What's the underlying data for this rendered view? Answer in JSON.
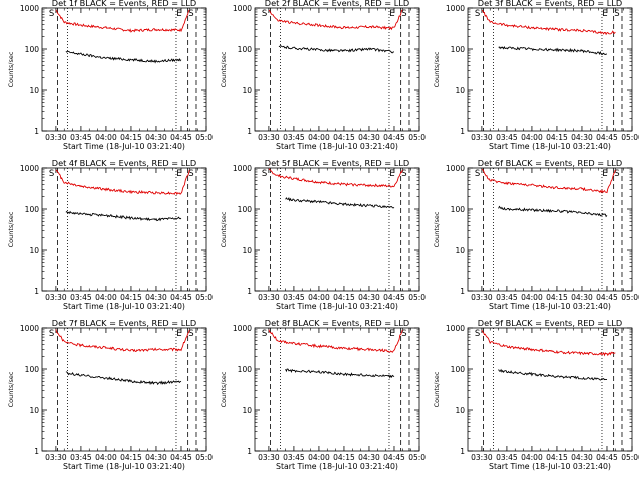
{
  "figure": {
    "ylabel": "Counts/sec",
    "xlabel": "Start Time (18-Jul-10 03:21:40)",
    "legend_colors": {
      "events": "#000000",
      "lld": "#e00000"
    }
  },
  "chart_data": [
    {
      "type": "line",
      "title": "Det 1f BLACK = Events, RED = LLD",
      "xlabel": "Start Time (18-Jul-10 03:21:40)",
      "ylabel": "Counts/sec",
      "yscale": "log",
      "ylim": [
        1,
        1000
      ],
      "xlim": [
        "03:21:40",
        "05:00:00"
      ],
      "x_ticks": [
        "03:30",
        "03:45",
        "04:00",
        "04:15",
        "04:30",
        "04:45",
        "05:00"
      ],
      "y_ticks": [
        "1",
        "10",
        "100",
        "1000"
      ],
      "markers": [
        "S",
        "E",
        "S"
      ],
      "series": [
        {
          "name": "LLD",
          "color": "#e00000",
          "x": [
            "03:30",
            "03:35",
            "03:45",
            "04:00",
            "04:15",
            "04:30",
            "04:45",
            "04:50"
          ],
          "values": [
            900,
            450,
            380,
            330,
            280,
            300,
            290,
            900
          ]
        },
        {
          "name": "Events",
          "color": "#000000",
          "x": [
            "03:36",
            "03:45",
            "04:00",
            "04:15",
            "04:30",
            "04:45"
          ],
          "values": [
            85,
            75,
            60,
            55,
            50,
            55
          ]
        }
      ]
    },
    {
      "type": "line",
      "title": "Det 2f BLACK = Events, RED = LLD",
      "xlabel": "Start Time (18-Jul-10 03:21:40)",
      "ylabel": "Counts/sec",
      "yscale": "log",
      "ylim": [
        1,
        1000
      ],
      "xlim": [
        "03:21:40",
        "05:00:00"
      ],
      "x_ticks": [
        "03:30",
        "03:45",
        "04:00",
        "04:15",
        "04:30",
        "04:45",
        "05:00"
      ],
      "y_ticks": [
        "1",
        "10",
        "100",
        "1000"
      ],
      "markers": [
        "S",
        "E",
        "S"
      ],
      "series": [
        {
          "name": "LLD",
          "color": "#e00000",
          "x": [
            "03:30",
            "03:35",
            "03:45",
            "04:00",
            "04:15",
            "04:30",
            "04:45",
            "04:50"
          ],
          "values": [
            900,
            500,
            430,
            380,
            330,
            350,
            320,
            900
          ]
        },
        {
          "name": "Events",
          "color": "#000000",
          "x": [
            "03:36",
            "03:45",
            "04:00",
            "04:15",
            "04:30",
            "04:45"
          ],
          "values": [
            115,
            105,
            95,
            90,
            100,
            85
          ]
        }
      ]
    },
    {
      "type": "line",
      "title": "Det 3f BLACK = Events, RED = LLD",
      "xlabel": "Start Time (18-Jul-10 03:21:40)",
      "ylabel": "Counts/sec",
      "yscale": "log",
      "ylim": [
        1,
        1000
      ],
      "xlim": [
        "03:21:40",
        "05:00:00"
      ],
      "x_ticks": [
        "03:30",
        "03:45",
        "04:00",
        "04:15",
        "04:30",
        "04:45",
        "05:00"
      ],
      "y_ticks": [
        "1",
        "10",
        "100",
        "1000"
      ],
      "markers": [
        "S",
        "E",
        "S"
      ],
      "series": [
        {
          "name": "LLD",
          "color": "#e00000",
          "x": [
            "03:30",
            "03:35",
            "03:45",
            "04:00",
            "04:15",
            "04:30",
            "04:45",
            "04:50"
          ],
          "values": [
            900,
            450,
            380,
            330,
            300,
            280,
            240,
            260
          ]
        },
        {
          "name": "Events",
          "color": "#000000",
          "x": [
            "03:40",
            "03:45",
            "04:00",
            "04:15",
            "04:30",
            "04:45"
          ],
          "values": [
            110,
            105,
            100,
            95,
            90,
            75
          ]
        }
      ]
    },
    {
      "type": "line",
      "title": "Det 4f BLACK = Events, RED = LLD",
      "xlabel": "Start Time (18-Jul-10 03:21:40)",
      "ylabel": "Counts/sec",
      "yscale": "log",
      "ylim": [
        1,
        1000
      ],
      "xlim": [
        "03:21:40",
        "05:00:00"
      ],
      "x_ticks": [
        "03:30",
        "03:45",
        "04:00",
        "04:15",
        "04:30",
        "04:45",
        "05:00"
      ],
      "y_ticks": [
        "1",
        "10",
        "100",
        "1000"
      ],
      "markers": [
        "S",
        "E",
        "S"
      ],
      "series": [
        {
          "name": "LLD",
          "color": "#e00000",
          "x": [
            "03:30",
            "03:35",
            "03:45",
            "04:00",
            "04:15",
            "04:30",
            "04:45",
            "04:50"
          ],
          "values": [
            900,
            450,
            360,
            300,
            260,
            250,
            240,
            900
          ]
        },
        {
          "name": "Events",
          "color": "#000000",
          "x": [
            "03:36",
            "03:45",
            "04:00",
            "04:15",
            "04:30",
            "04:45"
          ],
          "values": [
            85,
            75,
            70,
            60,
            55,
            60
          ]
        }
      ]
    },
    {
      "type": "line",
      "title": "Det 5f BLACK = Events, RED = LLD",
      "xlabel": "Start Time (18-Jul-10 03:21:40)",
      "ylabel": "Counts/sec",
      "yscale": "log",
      "ylim": [
        1,
        1000
      ],
      "xlim": [
        "03:21:40",
        "05:00:00"
      ],
      "x_ticks": [
        "03:30",
        "03:45",
        "04:00",
        "04:15",
        "04:30",
        "04:45",
        "05:00"
      ],
      "y_ticks": [
        "1",
        "10",
        "100",
        "1000"
      ],
      "markers": [
        "S",
        "E",
        "S"
      ],
      "series": [
        {
          "name": "LLD",
          "color": "#e00000",
          "x": [
            "03:30",
            "03:35",
            "03:45",
            "04:00",
            "04:15",
            "04:30",
            "04:45",
            "04:50"
          ],
          "values": [
            900,
            650,
            550,
            450,
            400,
            380,
            360,
            900
          ]
        },
        {
          "name": "Events",
          "color": "#000000",
          "x": [
            "03:40",
            "03:45",
            "04:00",
            "04:15",
            "04:30",
            "04:45"
          ],
          "values": [
            180,
            165,
            150,
            130,
            120,
            110
          ]
        }
      ]
    },
    {
      "type": "line",
      "title": "Det 6f BLACK = Events, RED = LLD",
      "xlabel": "Start Time (18-Jul-10 03:21:40)",
      "ylabel": "Counts/sec",
      "yscale": "log",
      "ylim": [
        1,
        1000
      ],
      "xlim": [
        "03:21:40",
        "05:00:00"
      ],
      "x_ticks": [
        "03:30",
        "03:45",
        "04:00",
        "04:15",
        "04:30",
        "04:45",
        "05:00"
      ],
      "y_ticks": [
        "1",
        "10",
        "100",
        "1000"
      ],
      "markers": [
        "S",
        "E",
        "S"
      ],
      "series": [
        {
          "name": "LLD",
          "color": "#e00000",
          "x": [
            "03:30",
            "03:35",
            "03:45",
            "04:00",
            "04:15",
            "04:30",
            "04:45",
            "04:50"
          ],
          "values": [
            900,
            500,
            430,
            380,
            330,
            310,
            260,
            900
          ]
        },
        {
          "name": "Events",
          "color": "#000000",
          "x": [
            "03:40",
            "03:45",
            "04:00",
            "04:15",
            "04:30",
            "04:45"
          ],
          "values": [
            110,
            100,
            95,
            90,
            80,
            70
          ]
        }
      ]
    },
    {
      "type": "line",
      "title": "Det 7f BLACK = Events, RED = LLD",
      "xlabel": "Start Time (18-Jul-10 03:21:40)",
      "ylabel": "Counts/sec",
      "yscale": "log",
      "ylim": [
        1,
        1000
      ],
      "xlim": [
        "03:21:40",
        "05:00:00"
      ],
      "x_ticks": [
        "03:30",
        "03:45",
        "04:00",
        "04:15",
        "04:30",
        "04:45",
        "05:00"
      ],
      "y_ticks": [
        "1",
        "10",
        "100",
        "1000"
      ],
      "markers": [
        "S",
        "E",
        "S"
      ],
      "series": [
        {
          "name": "LLD",
          "color": "#e00000",
          "x": [
            "03:30",
            "03:35",
            "03:45",
            "04:00",
            "04:15",
            "04:30",
            "04:45",
            "04:50"
          ],
          "values": [
            900,
            450,
            380,
            330,
            280,
            300,
            300,
            900
          ]
        },
        {
          "name": "Events",
          "color": "#000000",
          "x": [
            "03:36",
            "03:45",
            "04:00",
            "04:15",
            "04:30",
            "04:45"
          ],
          "values": [
            80,
            70,
            60,
            50,
            45,
            50
          ]
        }
      ]
    },
    {
      "type": "line",
      "title": "Det 8f BLACK = Events, RED = LLD",
      "xlabel": "Start Time (18-Jul-10 03:21:40)",
      "ylabel": "Counts/sec",
      "yscale": "log",
      "ylim": [
        1,
        1000
      ],
      "xlim": [
        "03:21:40",
        "05:00:00"
      ],
      "x_ticks": [
        "03:30",
        "03:45",
        "04:00",
        "04:15",
        "04:30",
        "04:45",
        "05:00"
      ],
      "y_ticks": [
        "1",
        "10",
        "100",
        "1000"
      ],
      "markers": [
        "S",
        "E",
        "S"
      ],
      "series": [
        {
          "name": "LLD",
          "color": "#e00000",
          "x": [
            "03:30",
            "03:35",
            "03:45",
            "04:00",
            "04:15",
            "04:30",
            "04:45",
            "04:50"
          ],
          "values": [
            900,
            500,
            420,
            360,
            320,
            300,
            270,
            900
          ]
        },
        {
          "name": "Events",
          "color": "#000000",
          "x": [
            "03:40",
            "03:45",
            "04:00",
            "04:15",
            "04:30",
            "04:45"
          ],
          "values": [
            95,
            90,
            85,
            75,
            70,
            65
          ]
        }
      ]
    },
    {
      "type": "line",
      "title": "Det 9f BLACK = Events, RED = LLD",
      "xlabel": "Start Time (18-Jul-10 03:21:40)",
      "ylabel": "Counts/sec",
      "yscale": "log",
      "ylim": [
        1,
        1000
      ],
      "xlim": [
        "03:21:40",
        "05:00:00"
      ],
      "x_ticks": [
        "03:30",
        "03:45",
        "04:00",
        "04:15",
        "04:30",
        "04:45",
        "05:00"
      ],
      "y_ticks": [
        "1",
        "10",
        "100",
        "1000"
      ],
      "markers": [
        "S",
        "E",
        "S"
      ],
      "series": [
        {
          "name": "LLD",
          "color": "#e00000",
          "x": [
            "03:30",
            "03:35",
            "03:45",
            "04:00",
            "04:15",
            "04:30",
            "04:45",
            "04:50"
          ],
          "values": [
            900,
            450,
            350,
            300,
            260,
            240,
            230,
            250
          ]
        },
        {
          "name": "Events",
          "color": "#000000",
          "x": [
            "03:40",
            "03:45",
            "04:00",
            "04:15",
            "04:30",
            "04:45"
          ],
          "values": [
            95,
            85,
            75,
            65,
            60,
            55
          ]
        }
      ]
    }
  ]
}
